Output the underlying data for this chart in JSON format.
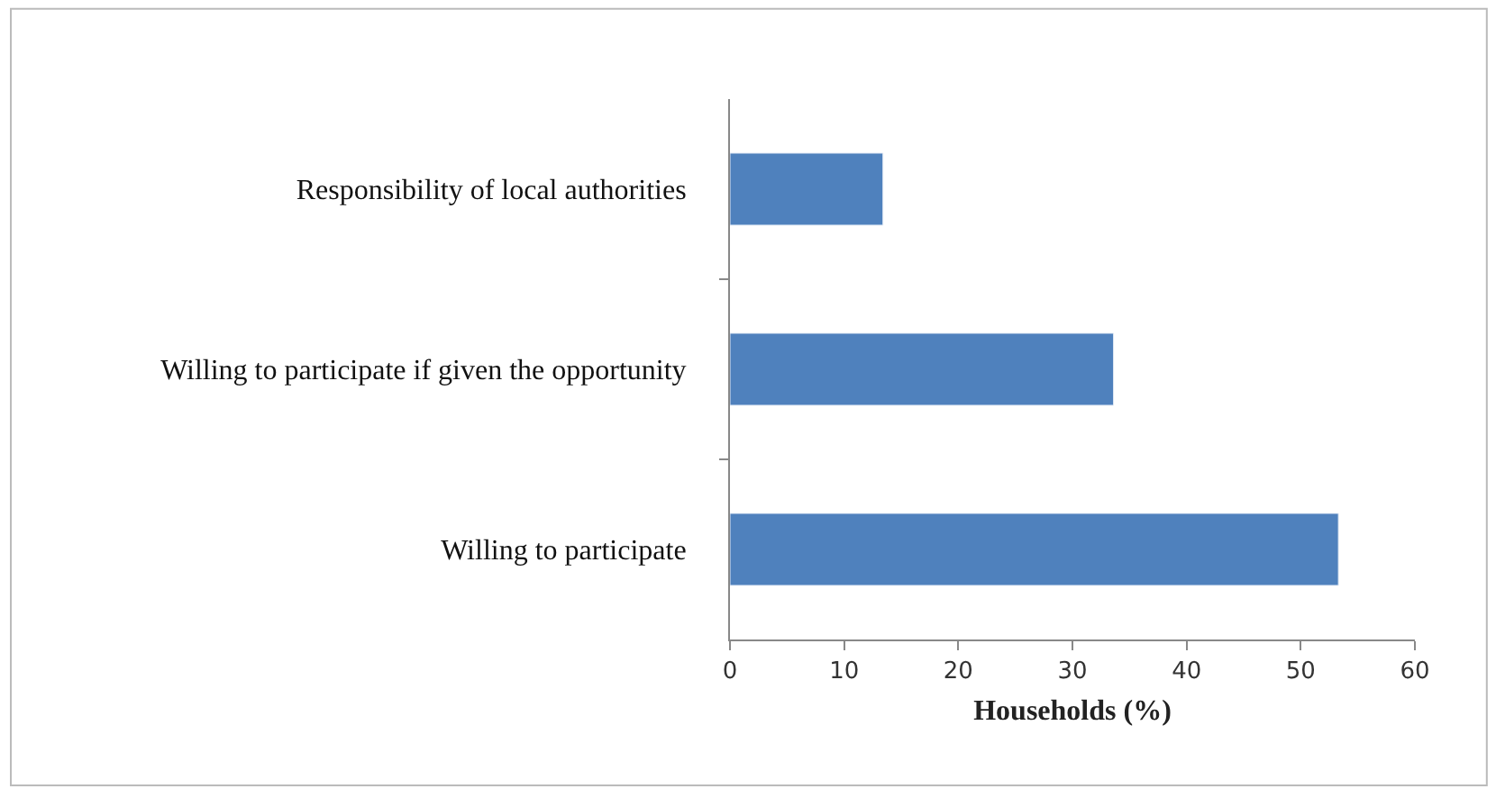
{
  "chart_data": {
    "type": "bar",
    "orientation": "horizontal",
    "xlabel": "Households (%)",
    "categories": [
      "Responsibility of local authorities",
      "Willing to participate if given the opportunity",
      "Willing to participate"
    ],
    "values": [
      13.4,
      33.6,
      53.3
    ],
    "color": "#4f81bd",
    "xlim": [
      0,
      60
    ],
    "xticks": [
      0,
      10,
      20,
      30,
      40,
      50,
      60
    ]
  }
}
